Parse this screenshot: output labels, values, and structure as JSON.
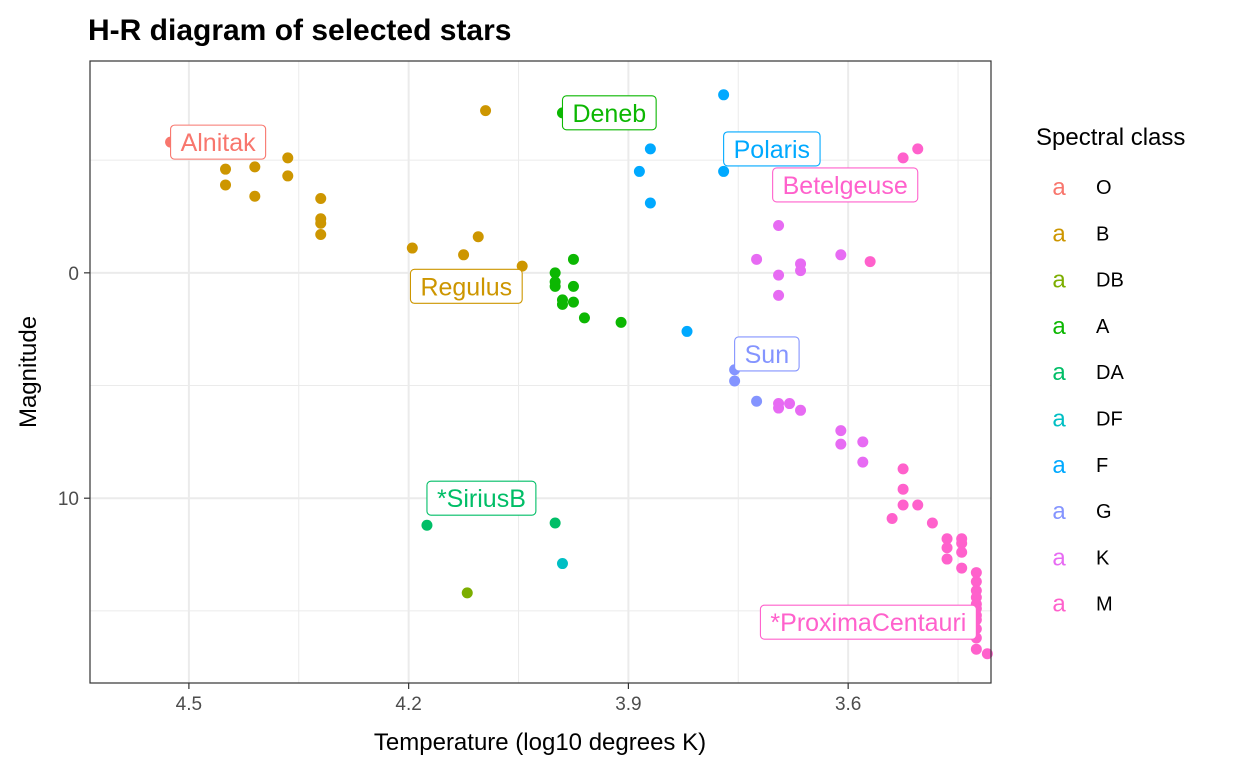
{
  "chart_data": {
    "type": "scatter",
    "title": "H-R diagram of selected stars",
    "xlabel": "Temperature (log10 degrees K)",
    "ylabel": "Magnitude",
    "x_reversed": true,
    "y_reversed": true,
    "xlim": [
      4.635,
      3.405
    ],
    "ylim": [
      -9.4,
      18.2
    ],
    "xticks": [
      4.5,
      4.2,
      3.9,
      3.6
    ],
    "xtick_labels": [
      "4.5",
      "4.2",
      "3.9",
      "3.6"
    ],
    "yticks": [
      0,
      10
    ],
    "ytick_labels": [
      "0",
      "10"
    ],
    "grid": true,
    "legend": {
      "title": "Spectral class",
      "position": "right",
      "key_glyph": "a",
      "entries": [
        {
          "class": "O",
          "color": "#F8766D"
        },
        {
          "class": "B",
          "color": "#CD9600"
        },
        {
          "class": "DB",
          "color": "#7CAE00"
        },
        {
          "class": "A",
          "color": "#0CB702"
        },
        {
          "class": "DA",
          "color": "#00BE67"
        },
        {
          "class": "DF",
          "color": "#00BFC4"
        },
        {
          "class": "F",
          "color": "#00A9FF"
        },
        {
          "class": "G",
          "color": "#8494FF"
        },
        {
          "class": "K",
          "color": "#E76BF3"
        },
        {
          "class": "M",
          "color": "#FF61CC"
        }
      ]
    },
    "series": [
      {
        "class": "O",
        "x": [
          4.525
        ],
        "y": [
          -5.8
        ]
      },
      {
        "class": "B",
        "x": [
          4.45,
          4.45,
          4.41,
          4.41,
          4.365,
          4.365,
          4.32,
          4.32,
          4.32,
          4.32,
          4.195,
          4.125,
          4.105,
          4.095,
          4.045
        ],
        "y": [
          -4.6,
          -3.9,
          -4.7,
          -3.4,
          -5.1,
          -4.3,
          -3.3,
          -2.4,
          -2.2,
          -1.7,
          -1.1,
          -0.8,
          -1.6,
          -7.2,
          -0.3
        ]
      },
      {
        "class": "DB",
        "x": [
          4.12
        ],
        "y": [
          14.2
        ]
      },
      {
        "class": "A",
        "x": [
          3.99,
          3.975,
          3.975,
          3.975,
          4.0,
          4.0,
          4.0,
          3.99,
          3.99,
          3.96,
          3.91
        ],
        "y": [
          -7.1,
          -0.6,
          0.6,
          1.3,
          0.0,
          0.4,
          0.6,
          1.2,
          1.4,
          2.0,
          2.2
        ]
      },
      {
        "class": "DA",
        "x": [
          4.175,
          4.0
        ],
        "y": [
          11.2,
          11.1
        ]
      },
      {
        "class": "DF",
        "x": [
          3.99
        ],
        "y": [
          12.9
        ]
      },
      {
        "class": "F",
        "x": [
          3.77,
          3.87,
          3.885,
          3.77,
          3.87,
          3.82
        ],
        "y": [
          -7.9,
          -5.5,
          -4.5,
          -4.5,
          -3.1,
          2.6
        ]
      },
      {
        "class": "G",
        "x": [
          3.755,
          3.755,
          3.725
        ],
        "y": [
          4.3,
          4.8,
          5.7
        ]
      },
      {
        "class": "K",
        "x": [
          3.695,
          3.725,
          3.695,
          3.665,
          3.665,
          3.695,
          3.61,
          3.695,
          3.695,
          3.68,
          3.665,
          3.61,
          3.61,
          3.58,
          3.58
        ],
        "y": [
          -2.1,
          -0.6,
          0.1,
          -0.4,
          -0.1,
          1.0,
          -0.8,
          5.8,
          6.0,
          5.8,
          6.1,
          7.0,
          7.6,
          7.5,
          8.4
        ]
      },
      {
        "class": "M",
        "x": [
          3.505,
          3.525,
          3.57,
          3.525,
          3.525,
          3.525,
          3.505,
          3.54,
          3.485,
          3.465,
          3.465,
          3.465,
          3.445,
          3.445,
          3.445,
          3.445,
          3.425,
          3.425,
          3.425,
          3.425,
          3.425,
          3.425,
          3.425,
          3.425,
          3.425,
          3.425,
          3.425,
          3.41
        ],
        "y": [
          -5.5,
          -5.1,
          -0.5,
          8.7,
          9.6,
          10.3,
          10.3,
          10.9,
          11.1,
          11.8,
          12.2,
          12.7,
          11.8,
          12.0,
          12.4,
          13.1,
          13.3,
          13.7,
          14.1,
          14.4,
          14.7,
          14.9,
          15.2,
          15.4,
          15.8,
          16.2,
          16.7,
          16.9
        ]
      }
    ],
    "annotations": [
      {
        "text": "Alnitak",
        "class": "O",
        "x": 4.525,
        "y": -5.8,
        "anchor": "right"
      },
      {
        "text": "Deneb",
        "class": "A",
        "x": 3.99,
        "y": -7.1,
        "anchor": "right"
      },
      {
        "text": "Polaris",
        "class": "F",
        "x": 3.77,
        "y": -5.5,
        "anchor": "right"
      },
      {
        "text": "Betelgeuse",
        "class": "M",
        "x": 3.505,
        "y": -3.9,
        "anchor": "left"
      },
      {
        "text": "Regulus",
        "class": "B",
        "x": 4.045,
        "y": 0.6,
        "anchor": "left"
      },
      {
        "text": "Sun",
        "class": "G",
        "x": 3.755,
        "y": 3.6,
        "anchor": "right"
      },
      {
        "text": "*SiriusB",
        "class": "DA",
        "x": 4.175,
        "y": 10.0,
        "anchor": "right"
      },
      {
        "text": "*ProximaCentauri",
        "class": "M",
        "x": 3.425,
        "y": 15.5,
        "anchor": "left"
      }
    ]
  }
}
